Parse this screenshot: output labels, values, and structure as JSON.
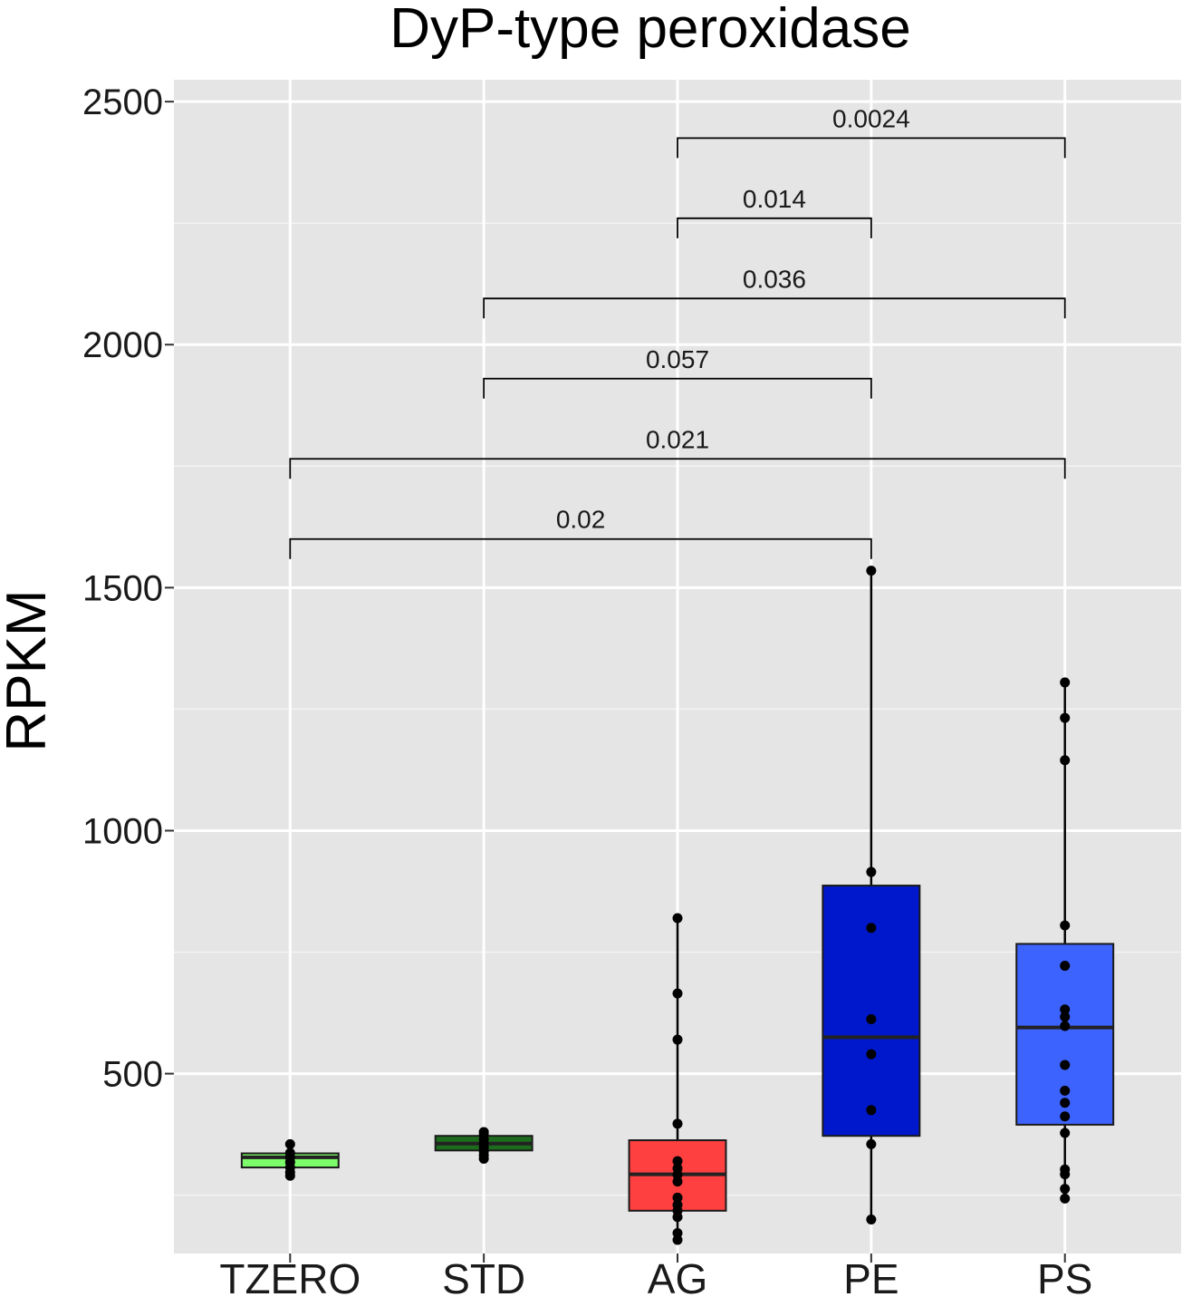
{
  "chart_data": {
    "type": "box",
    "title": "DyP-type peroxidase",
    "xlabel": "",
    "ylabel": "RPKM",
    "ylim": [
      130,
      2545
    ],
    "yticks": [
      500,
      1000,
      1500,
      2000,
      2500
    ],
    "ytick_labels": [
      "500",
      "1000",
      "1500",
      "2000",
      "2500"
    ],
    "grid": true,
    "panel_color": "#e5e5e5",
    "categories": [
      "TZERO",
      "STD",
      "AG",
      "PE",
      "PS"
    ],
    "boxes": [
      {
        "name": "TZERO",
        "color": "#7cfc6a",
        "q1": 307,
        "median": 328,
        "q3": 336,
        "whisker_low": 290,
        "whisker_high": 355,
        "points": [
          355,
          337,
          328,
          318,
          307,
          297,
          290
        ]
      },
      {
        "name": "STD",
        "color": "#1d6b1d",
        "q1": 342,
        "median": 356,
        "q3": 372,
        "whisker_low": 325,
        "whisker_high": 380,
        "points": [
          380,
          374,
          365,
          356,
          348,
          340,
          332,
          325
        ]
      },
      {
        "name": "AG",
        "color": "#ff4040",
        "q1": 218,
        "median": 293,
        "q3": 363,
        "whisker_low": 158,
        "whisker_high": 820,
        "points": [
          820,
          665,
          570,
          397,
          320,
          305,
          292,
          278,
          245,
          230,
          218,
          205,
          172,
          158
        ]
      },
      {
        "name": "PE",
        "color": "#0018cc",
        "q1": 372,
        "median": 575,
        "q3": 887,
        "whisker_low": 200,
        "whisker_high": 1535,
        "points": [
          1535,
          915,
          800,
          612,
          540,
          425,
          355,
          200
        ]
      },
      {
        "name": "PS",
        "color": "#3d63ff",
        "q1": 395,
        "median": 595,
        "q3": 767,
        "whisker_low": 243,
        "whisker_high": 1305,
        "points": [
          1305,
          1232,
          1145,
          805,
          722,
          632,
          617,
          598,
          518,
          465,
          440,
          412,
          378,
          303,
          293,
          263,
          243
        ]
      }
    ],
    "comparisons": [
      {
        "from": "AG",
        "to": "PS",
        "label": "0.0024",
        "y": 2425
      },
      {
        "from": "AG",
        "to": "PE",
        "label": "0.014",
        "y": 2260
      },
      {
        "from": "STD",
        "to": "PS",
        "label": "0.036",
        "y": 2095
      },
      {
        "from": "STD",
        "to": "PE",
        "label": "0.057",
        "y": 1930
      },
      {
        "from": "TZERO",
        "to": "PS",
        "label": "0.021",
        "y": 1765
      },
      {
        "from": "TZERO",
        "to": "PE",
        "label": "0.02",
        "y": 1600
      }
    ]
  }
}
